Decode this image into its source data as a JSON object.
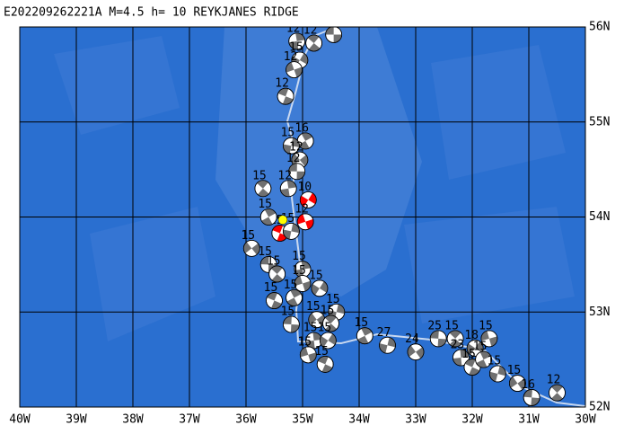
{
  "map": {
    "title": "E202209262221A M=4.5 h= 10 REYKJANES RIDGE",
    "lonlim": [
      -40,
      -30
    ],
    "latlim": [
      52,
      56
    ],
    "lon_ticks": [
      {
        "value": -40,
        "label": "40W"
      },
      {
        "value": -39,
        "label": "39W"
      },
      {
        "value": -38,
        "label": "38W"
      },
      {
        "value": -37,
        "label": "37W"
      },
      {
        "value": -36,
        "label": "36W"
      },
      {
        "value": -35,
        "label": "35W"
      },
      {
        "value": -34,
        "label": "34W"
      },
      {
        "value": -33,
        "label": "33W"
      },
      {
        "value": -32,
        "label": "32W"
      },
      {
        "value": -31,
        "label": "31W"
      },
      {
        "value": -30,
        "label": "30W"
      }
    ],
    "lat_ticks": [
      {
        "value": 56,
        "label": "56N"
      },
      {
        "value": 55,
        "label": "55N"
      },
      {
        "value": 54,
        "label": "54N"
      },
      {
        "value": 53,
        "label": "53N"
      },
      {
        "value": 52,
        "label": "52N"
      }
    ],
    "epicenter": {
      "lon": -35.35,
      "lat": 53.97,
      "color": "#ffff00"
    },
    "events": [
      {
        "lon": -34.45,
        "lat": 55.92,
        "depth": 15,
        "color": "#707070"
      },
      {
        "lon": -34.8,
        "lat": 55.83,
        "depth": 12,
        "color": "#707070"
      },
      {
        "lon": -35.1,
        "lat": 55.85,
        "depth": 12,
        "color": "#707070"
      },
      {
        "lon": -35.05,
        "lat": 55.65,
        "depth": 15,
        "color": "#707070"
      },
      {
        "lon": -35.15,
        "lat": 55.55,
        "depth": 12,
        "color": "#707070"
      },
      {
        "lon": -35.3,
        "lat": 55.27,
        "depth": 12,
        "color": "#707070"
      },
      {
        "lon": -34.95,
        "lat": 54.8,
        "depth": 16,
        "color": "#707070"
      },
      {
        "lon": -35.2,
        "lat": 54.75,
        "depth": 15,
        "color": "#707070"
      },
      {
        "lon": -35.05,
        "lat": 54.6,
        "depth": 12,
        "color": "#707070"
      },
      {
        "lon": -35.1,
        "lat": 54.48,
        "depth": 12,
        "color": "#707070"
      },
      {
        "lon": -35.7,
        "lat": 54.3,
        "depth": 15,
        "color": "#707070"
      },
      {
        "lon": -35.25,
        "lat": 54.3,
        "depth": 12,
        "color": "#707070"
      },
      {
        "lon": -34.9,
        "lat": 54.18,
        "depth": 10,
        "color": "#ff0000"
      },
      {
        "lon": -34.95,
        "lat": 53.95,
        "depth": 12,
        "color": "#ff0000"
      },
      {
        "lon": -35.4,
        "lat": 53.83,
        "depth": 15,
        "color": "#ff0000"
      },
      {
        "lon": -35.6,
        "lat": 54.0,
        "depth": 15,
        "color": "#707070"
      },
      {
        "lon": -35.2,
        "lat": 53.85,
        "depth": 15,
        "color": "#707070"
      },
      {
        "lon": -35.9,
        "lat": 53.67,
        "depth": 15,
        "color": "#707070"
      },
      {
        "lon": -35.6,
        "lat": 53.5,
        "depth": 15,
        "color": "#707070"
      },
      {
        "lon": -35.45,
        "lat": 53.4,
        "depth": 15,
        "color": "#707070"
      },
      {
        "lon": -35.0,
        "lat": 53.45,
        "depth": 15,
        "color": "#707070"
      },
      {
        "lon": -34.7,
        "lat": 53.25,
        "depth": 15,
        "color": "#707070"
      },
      {
        "lon": -35.0,
        "lat": 53.3,
        "depth": 15,
        "color": "#707070"
      },
      {
        "lon": -35.5,
        "lat": 53.12,
        "depth": 15,
        "color": "#707070"
      },
      {
        "lon": -35.15,
        "lat": 53.15,
        "depth": 15,
        "color": "#707070"
      },
      {
        "lon": -34.4,
        "lat": 53.0,
        "depth": 15,
        "color": "#707070"
      },
      {
        "lon": -34.75,
        "lat": 52.92,
        "depth": 15,
        "color": "#707070"
      },
      {
        "lon": -35.2,
        "lat": 52.87,
        "depth": 15,
        "color": "#707070"
      },
      {
        "lon": -34.5,
        "lat": 52.88,
        "depth": 15,
        "color": "#707070"
      },
      {
        "lon": -34.8,
        "lat": 52.7,
        "depth": 15,
        "color": "#707070"
      },
      {
        "lon": -34.55,
        "lat": 52.7,
        "depth": 15,
        "color": "#707070"
      },
      {
        "lon": -34.9,
        "lat": 52.55,
        "depth": 15,
        "color": "#707070"
      },
      {
        "lon": -34.6,
        "lat": 52.45,
        "depth": 15,
        "color": "#707070"
      },
      {
        "lon": -33.9,
        "lat": 52.75,
        "depth": 15,
        "color": "#707070"
      },
      {
        "lon": -33.5,
        "lat": 52.65,
        "depth": 27,
        "color": "#707070"
      },
      {
        "lon": -33.0,
        "lat": 52.58,
        "depth": 24,
        "color": "#707070"
      },
      {
        "lon": -32.6,
        "lat": 52.72,
        "depth": 25,
        "color": "#707070"
      },
      {
        "lon": -32.3,
        "lat": 52.72,
        "depth": 15,
        "color": "#707070"
      },
      {
        "lon": -32.2,
        "lat": 52.52,
        "depth": 23,
        "color": "#707070"
      },
      {
        "lon": -31.95,
        "lat": 52.62,
        "depth": 18,
        "color": "#707070"
      },
      {
        "lon": -31.7,
        "lat": 52.72,
        "depth": 15,
        "color": "#707070"
      },
      {
        "lon": -32.0,
        "lat": 52.42,
        "depth": 15,
        "color": "#707070"
      },
      {
        "lon": -31.8,
        "lat": 52.5,
        "depth": 15,
        "color": "#707070"
      },
      {
        "lon": -31.55,
        "lat": 52.35,
        "depth": 15,
        "color": "#707070"
      },
      {
        "lon": -31.2,
        "lat": 52.25,
        "depth": 15,
        "color": "#707070"
      },
      {
        "lon": -30.95,
        "lat": 52.1,
        "depth": 16,
        "color": "#707070"
      },
      {
        "lon": -30.5,
        "lat": 52.15,
        "depth": 12,
        "color": "#707070"
      }
    ]
  }
}
